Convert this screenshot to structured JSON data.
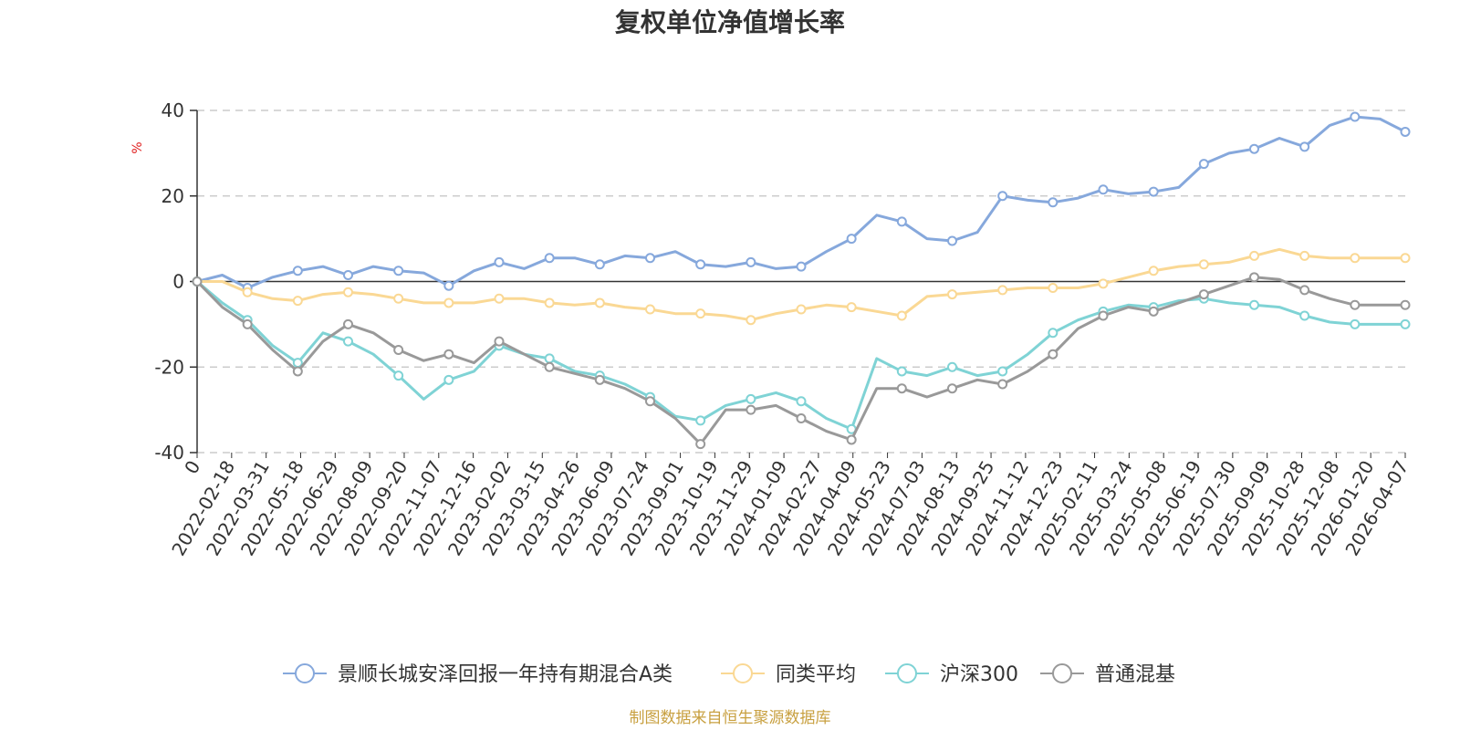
{
  "chart_data": {
    "type": "line",
    "title": "复权单位净值增长率",
    "ylabel": "%",
    "ylim": [
      -40,
      40
    ],
    "yticks": [
      40,
      20,
      0,
      -20,
      -40
    ],
    "x_axis_labels": [
      "0",
      "2022-02-18",
      "2022-03-31",
      "2022-05-18",
      "2022-06-29",
      "2022-08-09",
      "2022-09-20",
      "2022-11-07",
      "2022-12-16",
      "2023-02-02",
      "2023-03-15",
      "2023-04-26",
      "2023-06-09",
      "2023-07-24",
      "2023-09-01",
      "2023-10-19",
      "2023-11-29",
      "2024-01-09",
      "2024-02-27",
      "2024-04-09",
      "2024-05-23",
      "2024-07-03",
      "2024-08-13",
      "2024-09-25",
      "2024-11-12",
      "2024-12-23",
      "2025-02-11",
      "2025-03-24",
      "2025-05-08",
      "2025-06-19",
      "2025-07-30",
      "2025-09-09",
      "2025-10-28",
      "2025-12-08",
      "2026-01-20",
      "2026-04-07"
    ],
    "grid": "dashed-horizontal",
    "legend_position": "bottom-center",
    "series": [
      {
        "name": "景顺长城安泽回报一年持有期混合A类",
        "color": "#86a8dc",
        "values": [
          0,
          1.5,
          -1.5,
          1.0,
          2.5,
          3.5,
          1.5,
          3.5,
          2.5,
          2.0,
          -1.0,
          2.5,
          4.5,
          3.0,
          5.5,
          5.5,
          4.0,
          6.0,
          5.5,
          7.0,
          4.0,
          3.5,
          4.5,
          3.0,
          3.5,
          7.0,
          10.0,
          15.5,
          14.0,
          10.0,
          9.5,
          11.5,
          20.0,
          19.0,
          18.5,
          19.5,
          21.5,
          20.5,
          21.0,
          22.0,
          27.5,
          30.0,
          31.0,
          33.5,
          31.5,
          36.5,
          38.5,
          38.0,
          35.0
        ]
      },
      {
        "name": "同类平均",
        "color": "#fad894",
        "values": [
          0,
          0,
          -2.5,
          -4.0,
          -4.5,
          -3.0,
          -2.5,
          -3.0,
          -4.0,
          -5.0,
          -5.0,
          -5.0,
          -4.0,
          -4.0,
          -5.0,
          -5.5,
          -5.0,
          -6.0,
          -6.5,
          -7.5,
          -7.5,
          -8.0,
          -9.0,
          -7.5,
          -6.5,
          -5.5,
          -6.0,
          -7.0,
          -8.0,
          -3.5,
          -3.0,
          -2.5,
          -2.0,
          -1.5,
          -1.5,
          -1.5,
          -0.5,
          1.0,
          2.5,
          3.5,
          4.0,
          4.5,
          6.0,
          7.5,
          6.0,
          5.5,
          5.5,
          5.5,
          5.5
        ]
      },
      {
        "name": "沪深300",
        "color": "#7fd3d5",
        "values": [
          0,
          -5.0,
          -9.0,
          -15.0,
          -19.0,
          -12.0,
          -14.0,
          -17.0,
          -22.0,
          -27.5,
          -23.0,
          -21.0,
          -15.0,
          -17.0,
          -18.0,
          -21.0,
          -22.0,
          -24.0,
          -27.0,
          -31.5,
          -32.5,
          -29.0,
          -27.5,
          -26.0,
          -28.0,
          -32.0,
          -34.5,
          -18.0,
          -21.0,
          -22.0,
          -20.0,
          -22.0,
          -21.0,
          -17.0,
          -12.0,
          -9.0,
          -7.0,
          -5.5,
          -6.0,
          -4.5,
          -4.0,
          -5.0,
          -5.5,
          -6.0,
          -8.0,
          -9.5,
          -10.0,
          -10.0,
          -10.0
        ]
      },
      {
        "name": "普通混基",
        "color": "#999999",
        "values": [
          0,
          -6.0,
          -10.0,
          -16.0,
          -21.0,
          -14.0,
          -10.0,
          -12.0,
          -16.0,
          -18.5,
          -17.0,
          -19.0,
          -14.0,
          -17.0,
          -20.0,
          -21.5,
          -23.0,
          -25.0,
          -28.0,
          -32.0,
          -38.0,
          -30.0,
          -30.0,
          -29.0,
          -32.0,
          -35.0,
          -37.0,
          -25.0,
          -25.0,
          -27.0,
          -25.0,
          -23.0,
          -24.0,
          -21.0,
          -17.0,
          -11.0,
          -8.0,
          -6.0,
          -7.0,
          -5.0,
          -3.0,
          -1.0,
          1.0,
          0.5,
          -2.0,
          -4.0,
          -5.5,
          -5.5,
          -5.5
        ]
      }
    ],
    "source": "制图数据来自恒生聚源数据库"
  }
}
